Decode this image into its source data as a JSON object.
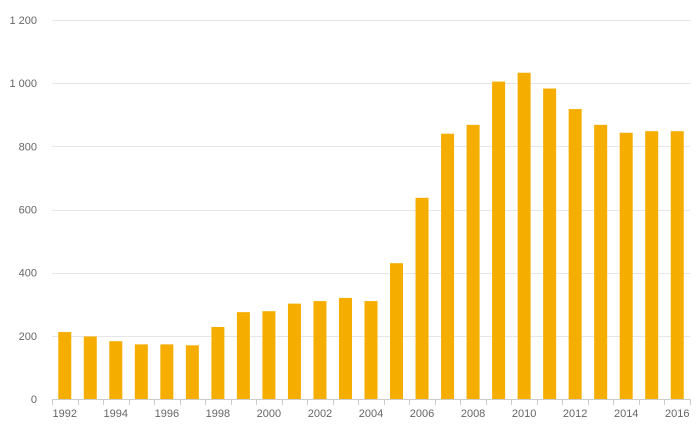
{
  "chart_data": {
    "type": "bar",
    "categories": [
      "1992",
      "1993",
      "1994",
      "1995",
      "1996",
      "1997",
      "1998",
      "1999",
      "2000",
      "2001",
      "2002",
      "2003",
      "2004",
      "2005",
      "2006",
      "2007",
      "2008",
      "2009",
      "2010",
      "2011",
      "2012",
      "2013",
      "2014",
      "2015",
      "2016"
    ],
    "values": [
      212,
      198,
      183,
      173,
      173,
      170,
      228,
      275,
      278,
      302,
      310,
      320,
      310,
      430,
      637,
      840,
      868,
      1005,
      1033,
      983,
      918,
      868,
      843,
      848,
      848
    ],
    "x_tick_labels": [
      "1992",
      "1994",
      "1996",
      "1998",
      "2000",
      "2002",
      "2004",
      "2006",
      "2008",
      "2010",
      "2012",
      "2014",
      "2016"
    ],
    "y_ticks": [
      0,
      200,
      400,
      600,
      800,
      1000,
      1200
    ],
    "y_tick_labels": [
      "0",
      "200",
      "400",
      "600",
      "800",
      "1 000",
      "1 200"
    ],
    "ylim": [
      0,
      1200
    ],
    "grid": true,
    "legend": "none",
    "bar_color": "#f5ae00",
    "grid_color": "#e6e6e6",
    "title": "",
    "xlabel": "",
    "ylabel": ""
  }
}
